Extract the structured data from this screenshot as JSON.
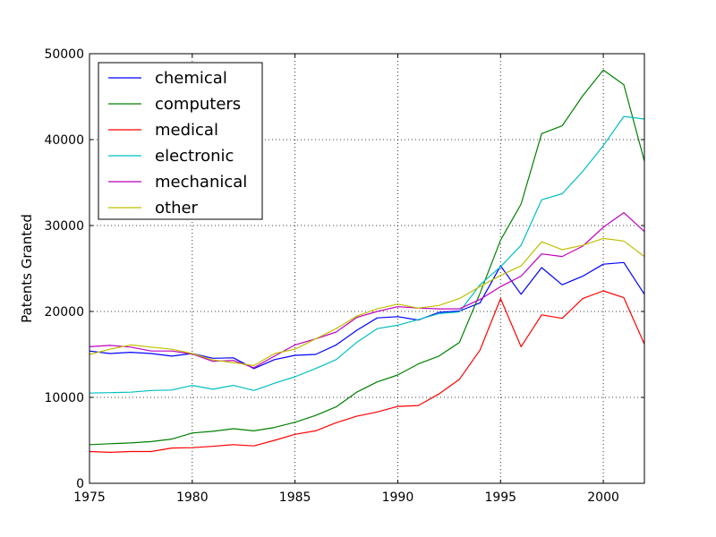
{
  "chart_data": {
    "type": "line",
    "title": "",
    "xlabel": "",
    "ylabel": "Patents Granted",
    "xlim": [
      1975,
      2002
    ],
    "ylim": [
      0,
      50000
    ],
    "grid": true,
    "legend_position": "top-left",
    "x_ticks": [
      1975,
      1980,
      1985,
      1990,
      1995,
      2000
    ],
    "y_ticks": [
      0,
      10000,
      20000,
      30000,
      40000,
      50000
    ],
    "x_tick_labels": [
      "1975",
      "1980",
      "1985",
      "1990",
      "1995",
      "2000"
    ],
    "y_tick_labels": [
      "0",
      "10000",
      "20000",
      "30000",
      "40000",
      "50000"
    ],
    "x": [
      1975,
      1976,
      1977,
      1978,
      1979,
      1980,
      1981,
      1982,
      1983,
      1984,
      1985,
      1986,
      1987,
      1988,
      1989,
      1990,
      1991,
      1992,
      1993,
      1994,
      1995,
      1996,
      1997,
      1998,
      1999,
      2000,
      2001,
      2002
    ],
    "series": [
      {
        "name": "chemical",
        "color": "#0000ff",
        "values": [
          15400,
          15100,
          15250,
          15100,
          14800,
          15100,
          14550,
          14600,
          13350,
          14400,
          14900,
          15000,
          16100,
          17800,
          19250,
          19400,
          19000,
          19900,
          20050,
          21000,
          25300,
          22000,
          25100,
          23100,
          24100,
          25500,
          25700,
          22000
        ]
      },
      {
        "name": "computers",
        "color": "#008000",
        "values": [
          4500,
          4600,
          4700,
          4850,
          5150,
          5850,
          6050,
          6350,
          6100,
          6500,
          7100,
          7900,
          8900,
          10600,
          11800,
          12600,
          13900,
          14800,
          16400,
          22100,
          28300,
          32500,
          40700,
          41600,
          45100,
          48100,
          46400,
          37500
        ]
      },
      {
        "name": "medical",
        "color": "#ff0000",
        "values": [
          3700,
          3600,
          3700,
          3700,
          4100,
          4150,
          4300,
          4500,
          4350,
          5000,
          5700,
          6100,
          7050,
          7800,
          8300,
          8950,
          9050,
          10400,
          12100,
          15500,
          21500,
          15900,
          19600,
          19200,
          21500,
          22400,
          21600,
          16200
        ]
      },
      {
        "name": "electronic",
        "color": "#00bfbf",
        "values": [
          10500,
          10550,
          10600,
          10800,
          10850,
          11400,
          10950,
          11400,
          10800,
          11650,
          12400,
          13350,
          14400,
          16400,
          18000,
          18400,
          19050,
          19750,
          19950,
          23100,
          25200,
          27700,
          33000,
          33700,
          36300,
          39300,
          42700,
          42400
        ]
      },
      {
        "name": "mechanical",
        "color": "#bf00bf",
        "values": [
          15900,
          16050,
          15850,
          15400,
          15400,
          15050,
          14200,
          14300,
          13450,
          14800,
          16100,
          16800,
          17600,
          19300,
          20000,
          20550,
          20400,
          20300,
          20300,
          21400,
          22900,
          24100,
          26700,
          26400,
          27600,
          29800,
          31500,
          29300
        ]
      },
      {
        "name": "other",
        "color": "#bfbf00",
        "values": [
          15000,
          15600,
          16100,
          15850,
          15600,
          15100,
          14350,
          14050,
          13700,
          15100,
          15600,
          16800,
          18000,
          19450,
          20300,
          20850,
          20400,
          20700,
          21500,
          22900,
          24200,
          25300,
          28100,
          27200,
          27700,
          28500,
          28200,
          26400
        ]
      }
    ]
  }
}
